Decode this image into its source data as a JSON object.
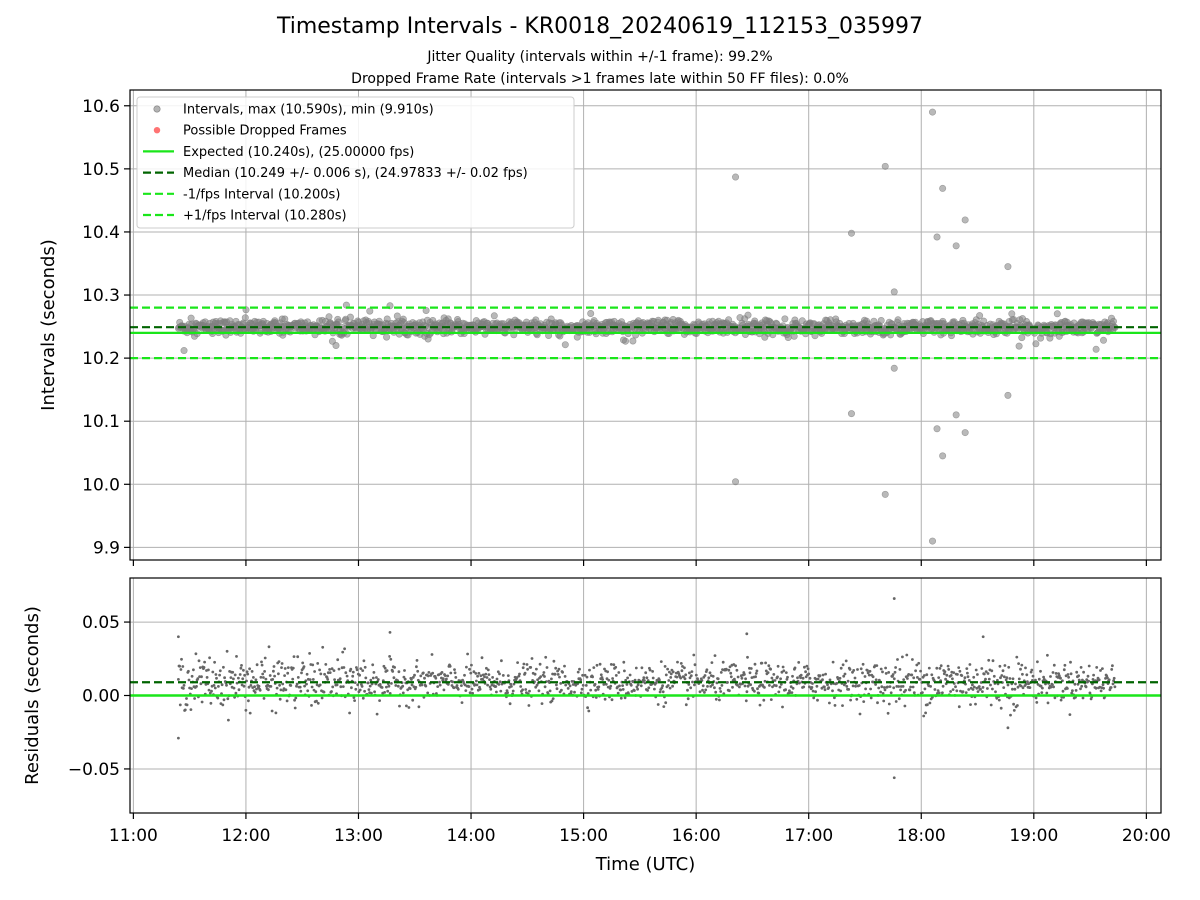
{
  "chart_data": {
    "type": "scatter",
    "title": "Timestamp Intervals - KR0018_20240619_112153_035997",
    "subtitle_lines": [
      "Jitter Quality (intervals within +/-1 frame): 99.2%",
      "Dropped Frame Rate (intervals >1 frames late within 50 FF files): 0.0%"
    ],
    "xlabel": "Time (UTC)",
    "x_ticks": [
      "11:00",
      "12:00",
      "13:00",
      "14:00",
      "15:00",
      "16:00",
      "17:00",
      "18:00",
      "19:00",
      "20:00"
    ],
    "x_range_hours": [
      10.97,
      20.13
    ],
    "data_time_range_hours": [
      11.4,
      19.72
    ],
    "grid": true,
    "legend_position": "upper-left",
    "colors": {
      "intervals": "#808080",
      "dropped": "#ff5a5a",
      "expected": "#1ae61a",
      "median": "#006400",
      "fps_bounds": "#1ae61a",
      "residual_points": "#666666"
    },
    "top_panel": {
      "ylabel": "Intervals (seconds)",
      "ylim": [
        9.88,
        10.625
      ],
      "yticks": [
        "9.9",
        "10.0",
        "10.1",
        "10.2",
        "10.3",
        "10.4",
        "10.5",
        "10.6"
      ],
      "ytick_values": [
        9.9,
        10.0,
        10.1,
        10.2,
        10.3,
        10.4,
        10.5,
        10.6
      ],
      "legend": [
        "Intervals, max (10.590s), min (9.910s)",
        "Possible Dropped Frames",
        "Expected (10.240s), (25.00000 fps)",
        "Median (10.249 +/- 0.006 s), (24.97833 +/- 0.02 fps)",
        "-1/fps Interval (10.200s)",
        "+1/fps Interval (10.280s)"
      ],
      "expected": 10.24,
      "median": 10.249,
      "lower_interval": 10.2,
      "upper_interval": 10.28,
      "max": 10.59,
      "min": 9.91,
      "outliers": [
        [
          16.35,
          10.487
        ],
        [
          16.35,
          10.004
        ],
        [
          17.38,
          10.398
        ],
        [
          17.38,
          10.112
        ],
        [
          17.68,
          10.504
        ],
        [
          17.68,
          9.984
        ],
        [
          17.76,
          10.305
        ],
        [
          17.76,
          10.184
        ],
        [
          18.1,
          10.59
        ],
        [
          18.1,
          9.91
        ],
        [
          18.14,
          10.392
        ],
        [
          18.14,
          10.088
        ],
        [
          18.19,
          10.469
        ],
        [
          18.19,
          10.045
        ],
        [
          18.31,
          10.378
        ],
        [
          18.31,
          10.11
        ],
        [
          18.39,
          10.419
        ],
        [
          18.39,
          10.082
        ],
        [
          18.77,
          10.345
        ],
        [
          18.77,
          10.141
        ],
        [
          13.28,
          10.283
        ],
        [
          12.8,
          10.22
        ],
        [
          11.45,
          10.212
        ]
      ]
    },
    "bottom_panel": {
      "ylabel": "Residuals (seconds)",
      "ylim": [
        -0.08,
        0.08
      ],
      "yticks": [
        "−0.05",
        "0.00",
        "0.05"
      ],
      "ytick_values": [
        -0.05,
        0.0,
        0.05
      ],
      "expected_residual": 0.0,
      "median_residual": 0.009,
      "outliers": [
        [
          17.76,
          0.066
        ],
        [
          17.76,
          -0.056
        ],
        [
          13.28,
          0.043
        ],
        [
          16.45,
          0.042
        ],
        [
          11.4,
          0.04
        ],
        [
          11.4,
          -0.029
        ],
        [
          18.55,
          0.04
        ],
        [
          18.77,
          -0.022
        ]
      ]
    }
  }
}
